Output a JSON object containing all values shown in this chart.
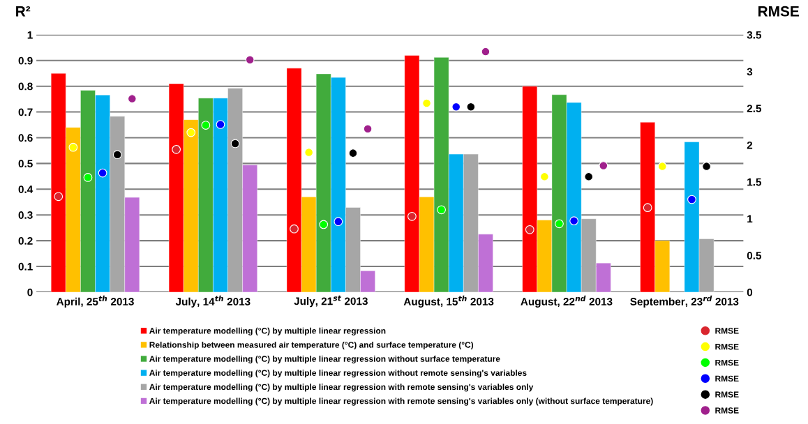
{
  "chart_data": {
    "type": "bar",
    "ylabel": "R²",
    "y2label": "RMSE",
    "categories": [
      "April, 25$^{th}$ 2013",
      "July, 14$^{th}$ 2013",
      "July, 21$^{st}$ 2013",
      "August, 15$^{th}$ 2013",
      "August, 22$^{nd}$ 2013",
      "September, 23$^{rd}$ 2013"
    ],
    "series": [
      {
        "name": "Air temperature modelling (°C) by multiple linear regression",
        "color": "#ff0000",
        "values": [
          0.85,
          0.81,
          0.87,
          0.92,
          0.8,
          0.66
        ]
      },
      {
        "name": "Relationship between measured air temperature (°C) and surface temperature (°C)",
        "color": "#ffc000",
        "values": [
          0.64,
          0.67,
          0.37,
          0.37,
          0.28,
          0.2
        ]
      },
      {
        "name": "Air temperature modelling (°C) by multiple linear regression without surface temperature",
        "color": "#41ab3c",
        "values": [
          0.784,
          0.754,
          0.848,
          0.912,
          0.767,
          null
        ]
      },
      {
        "name": "Air temperature modelling (°C) by multiple linear regression without remote sensing's variables",
        "color": "#00b0f0",
        "values": [
          0.766,
          0.754,
          0.834,
          0.536,
          0.737,
          0.584
        ]
      },
      {
        "name": "Air temperature modelling (°C) by multiple linear regression with remote sensing's variables only",
        "color": "#a6a6a6",
        "values": [
          0.683,
          0.792,
          0.329,
          0.536,
          0.285,
          0.207
        ]
      },
      {
        "name": "Air temperature modelling (°C) by multiple linear regression with remote sensing's variables only (without surface temperature)",
        "color": "#bf70d6",
        "values": [
          0.368,
          0.494,
          0.083,
          0.225,
          0.113,
          null
        ]
      },
      {
        "name": "RMSE",
        "type": "scatter",
        "axis": "y2",
        "color": "#d9262e",
        "values": [
          1.3,
          1.94,
          0.86,
          1.03,
          0.85,
          1.15
        ]
      },
      {
        "name": "RMSE",
        "type": "scatter",
        "axis": "y2",
        "color": "#ffff00",
        "values": [
          1.97,
          2.17,
          1.9,
          2.57,
          1.57,
          1.71
        ]
      },
      {
        "name": "RMSE",
        "type": "scatter",
        "axis": "y2",
        "color": "#00ff00",
        "values": [
          1.56,
          2.27,
          0.92,
          1.12,
          0.93,
          null
        ]
      },
      {
        "name": "RMSE",
        "type": "scatter",
        "axis": "y2",
        "color": "#0000ff",
        "values": [
          1.62,
          2.28,
          0.96,
          2.52,
          0.97,
          1.26
        ]
      },
      {
        "name": "RMSE",
        "type": "scatter",
        "axis": "y2",
        "color": "#000000",
        "values": [
          1.87,
          2.02,
          1.89,
          2.52,
          1.57,
          1.71
        ]
      },
      {
        "name": "RMSE",
        "type": "scatter",
        "axis": "y2",
        "color": "#a0208c",
        "values": [
          2.63,
          3.16,
          2.22,
          3.27,
          1.72,
          null
        ]
      }
    ],
    "ylim": [
      0,
      1
    ],
    "yticks": [
      0,
      0.1,
      0.2,
      0.3,
      0.4,
      0.5,
      0.6,
      0.7,
      0.8,
      0.9,
      1
    ],
    "y2lim": [
      0,
      3.5
    ],
    "y2ticks": [
      0,
      0.5,
      1,
      1.5,
      2,
      2.5,
      3,
      3.5
    ],
    "grid": "y",
    "legend": "bottom",
    "marker": "circle"
  }
}
